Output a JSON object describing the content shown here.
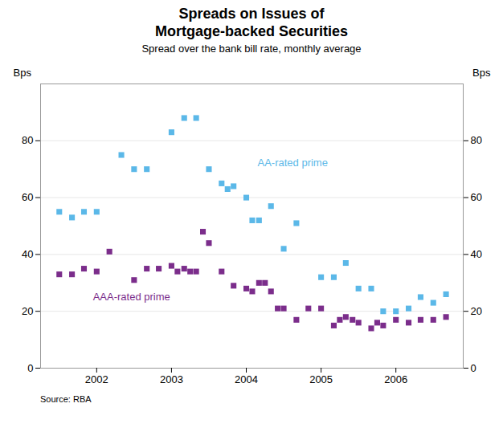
{
  "chart_data": {
    "type": "scatter",
    "title": [
      "Spreads on Issues of",
      "Mortgage-backed Securities"
    ],
    "subtitle": "Spread over the bank bill rate, monthly average",
    "ylabel": "Bps",
    "y2label": "Bps",
    "source": "Source: RBA",
    "xlim": [
      2001.25,
      2006.9
    ],
    "xticks": [
      2002,
      2003,
      2004,
      2005,
      2006
    ],
    "ylim": [
      0,
      100
    ],
    "yticks": [
      0,
      20,
      40,
      60,
      80
    ],
    "y2lim": [
      0,
      100
    ],
    "y2ticks": [
      0,
      20,
      40,
      60,
      80
    ],
    "grid": true,
    "series": [
      {
        "name": "AA-rated prime",
        "color": "#5bb8e8",
        "marker": "square",
        "x": [
          2001.5,
          2001.67,
          2001.83,
          2002.0,
          2002.33,
          2002.5,
          2002.67,
          2003.0,
          2003.17,
          2003.33,
          2003.5,
          2003.67,
          2003.75,
          2003.83,
          2004.0,
          2004.08,
          2004.17,
          2004.33,
          2004.5,
          2004.67,
          2005.0,
          2005.17,
          2005.33,
          2005.5,
          2005.67,
          2005.83,
          2006.0,
          2006.17,
          2006.33,
          2006.5,
          2006.67
        ],
        "values": [
          55,
          53,
          55,
          55,
          75,
          70,
          70,
          83,
          88,
          88,
          70,
          65,
          63,
          64,
          60,
          52,
          52,
          57,
          42,
          51,
          32,
          32,
          37,
          28,
          28,
          20,
          20,
          21,
          25,
          23,
          26
        ]
      },
      {
        "name": "AAA-rated prime",
        "color": "#7b2d8b",
        "marker": "square",
        "x": [
          2001.5,
          2001.67,
          2001.83,
          2002.0,
          2002.17,
          2002.5,
          2002.67,
          2002.83,
          2003.0,
          2003.08,
          2003.17,
          2003.25,
          2003.33,
          2003.42,
          2003.5,
          2003.67,
          2003.83,
          2004.0,
          2004.08,
          2004.17,
          2004.25,
          2004.33,
          2004.42,
          2004.5,
          2004.67,
          2004.83,
          2005.0,
          2005.17,
          2005.25,
          2005.33,
          2005.42,
          2005.5,
          2005.67,
          2005.75,
          2005.83,
          2006.0,
          2006.17,
          2006.33,
          2006.5,
          2006.67
        ],
        "values": [
          33,
          33,
          35,
          34,
          41,
          31,
          35,
          35,
          36,
          34,
          35,
          34,
          34,
          48,
          44,
          34,
          29,
          28,
          27,
          30,
          30,
          27,
          21,
          21,
          17,
          21,
          21,
          15,
          17,
          18,
          17,
          16,
          14,
          16,
          15,
          17,
          16,
          17,
          17,
          18
        ]
      }
    ],
    "annotations": [
      {
        "text": "AA-rated prime",
        "x": 2004.15,
        "y": 71,
        "color": "#5bb8e8"
      },
      {
        "text": "AAA-rated prime",
        "x": 2001.95,
        "y": 24,
        "color": "#7b2d8b"
      }
    ]
  }
}
